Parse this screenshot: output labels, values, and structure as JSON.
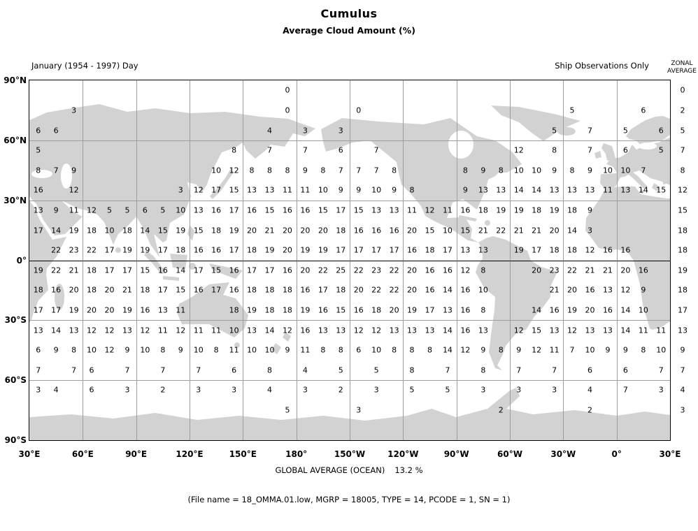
{
  "title": "Cumulus",
  "subtitle": "Average Cloud Amount (%)",
  "period_label": "January (1954 - 1997) Day",
  "source_label": "Ship Observations Only",
  "zonal_header": {
    "line1": "ZONAL",
    "line2": "AVERAGE"
  },
  "footer": {
    "global_label": "GLOBAL AVERAGE (OCEAN)",
    "global_value": "13.2 %",
    "file_info": "(File name = 18_OMMA.01.low, MGRP = 18005, TYPE = 14, PCODE = 1, SN = 1)"
  },
  "colors": {
    "land": "#d2d2d2",
    "grid": "#9d9d9d",
    "border": "#000000",
    "text": "#000000"
  },
  "chart_data": {
    "type": "heatmap",
    "title": "Cumulus",
    "subtitle": "Average Cloud Amount (%)",
    "period": "January (1954 - 1997) Day",
    "source": "Ship Observations Only",
    "units": "%",
    "global_average_ocean": 13.2,
    "grid_resolution_deg": 10,
    "lon_origin_deg_east": 30,
    "columns": 36,
    "x_tick_labels": [
      "30°E",
      "60°E",
      "90°E",
      "120°E",
      "150°E",
      "180°",
      "150°W",
      "120°W",
      "90°W",
      "60°W",
      "30°W",
      "0°",
      "30°E"
    ],
    "y_tick_labels": [
      "90°N",
      "60°N",
      "30°N",
      "0°",
      "30°S",
      "60°S",
      "90°S"
    ],
    "zonal_average_column": [
      0,
      2,
      5,
      7,
      8,
      12,
      15,
      18,
      18,
      19,
      18,
      17,
      13,
      9,
      7,
      4,
      3
    ],
    "rows": [
      {
        "band": "80N-90N",
        "zonal": 0,
        "values": {
          "14": 0
        }
      },
      {
        "band": "70N-80N",
        "zonal": 2,
        "values": {
          "2": 3,
          "14": 0,
          "18": 0,
          "30": 5,
          "34": 6
        }
      },
      {
        "band": "60N-70N",
        "zonal": 5,
        "values": {
          "0": 6,
          "1": 6,
          "13": 4,
          "15": 3,
          "17": 3,
          "29": 5,
          "31": 7,
          "33": 5,
          "35": 6
        }
      },
      {
        "band": "50N-60N",
        "zonal": 7,
        "values": {
          "0": 5,
          "11": 8,
          "13": 7,
          "15": 7,
          "17": 6,
          "19": 7,
          "27": 12,
          "29": 8,
          "31": 7,
          "33": 6,
          "35": 5
        }
      },
      {
        "band": "40N-50N",
        "zonal": 8,
        "values": {
          "0": 8,
          "1": 7,
          "2": 9,
          "10": 10,
          "11": 12,
          "12": 8,
          "13": 8,
          "14": 8,
          "15": 9,
          "16": 8,
          "17": 7,
          "18": 7,
          "19": 7,
          "20": 8,
          "24": 8,
          "25": 9,
          "26": 8,
          "27": 10,
          "28": 10,
          "29": 9,
          "30": 8,
          "31": 9,
          "32": 10,
          "33": 10,
          "34": 7
        }
      },
      {
        "band": "30N-40N",
        "zonal": 12,
        "values": {
          "0": 16,
          "2": 12,
          "8": 3,
          "9": 12,
          "10": 17,
          "11": 15,
          "12": 13,
          "13": 13,
          "14": 11,
          "15": 11,
          "16": 10,
          "17": 9,
          "18": 9,
          "19": 10,
          "20": 9,
          "21": 8,
          "24": 9,
          "25": 13,
          "26": 13,
          "27": 14,
          "28": 14,
          "29": 13,
          "30": 13,
          "31": 13,
          "32": 11,
          "33": 13,
          "34": 14,
          "35": 15
        }
      },
      {
        "band": "20N-30N",
        "zonal": 15,
        "values": {
          "0": 13,
          "1": 9,
          "2": 11,
          "3": 12,
          "4": 5,
          "5": 5,
          "6": 6,
          "7": 5,
          "8": 10,
          "9": 13,
          "10": 16,
          "11": 17,
          "12": 16,
          "13": 15,
          "14": 16,
          "15": 16,
          "16": 15,
          "17": 17,
          "18": 15,
          "19": 13,
          "20": 13,
          "21": 11,
          "22": 12,
          "23": 11,
          "24": 16,
          "25": 18,
          "26": 19,
          "27": 19,
          "28": 18,
          "29": 19,
          "30": 18,
          "31": 9
        }
      },
      {
        "band": "10N-20N",
        "zonal": 18,
        "values": {
          "0": 17,
          "1": 14,
          "2": 19,
          "3": 18,
          "4": 10,
          "5": 18,
          "6": 14,
          "7": 15,
          "8": 19,
          "9": 15,
          "10": 18,
          "11": 19,
          "12": 20,
          "13": 21,
          "14": 20,
          "15": 20,
          "16": 20,
          "17": 18,
          "18": 16,
          "19": 16,
          "20": 16,
          "21": 20,
          "22": 15,
          "23": 10,
          "24": 15,
          "25": 21,
          "26": 22,
          "27": 21,
          "28": 21,
          "29": 20,
          "30": 14,
          "31": 3
        }
      },
      {
        "band": "0-10N",
        "zonal": 18,
        "values": {
          "1": 22,
          "2": 23,
          "3": 22,
          "4": 17,
          "5": 19,
          "6": 19,
          "7": 17,
          "8": 18,
          "9": 16,
          "10": 16,
          "11": 17,
          "12": 18,
          "13": 19,
          "14": 20,
          "15": 19,
          "16": 19,
          "17": 17,
          "18": 17,
          "19": 17,
          "20": 17,
          "21": 16,
          "22": 18,
          "23": 17,
          "24": 13,
          "25": 13,
          "27": 19,
          "28": 17,
          "29": 18,
          "30": 18,
          "31": 12,
          "32": 16,
          "33": 16
        }
      },
      {
        "band": "0-10S",
        "zonal": 19,
        "values": {
          "0": 19,
          "1": 22,
          "2": 21,
          "3": 18,
          "4": 17,
          "5": 17,
          "6": 15,
          "7": 16,
          "8": 14,
          "9": 17,
          "10": 15,
          "11": 16,
          "12": 17,
          "13": 17,
          "14": 16,
          "15": 20,
          "16": 22,
          "17": 25,
          "18": 22,
          "19": 23,
          "20": 22,
          "21": 20,
          "22": 16,
          "23": 16,
          "24": 12,
          "25": 8,
          "28": 20,
          "29": 23,
          "30": 22,
          "31": 21,
          "32": 21,
          "33": 20,
          "34": 16
        }
      },
      {
        "band": "10S-20S",
        "zonal": 18,
        "values": {
          "0": 18,
          "1": 16,
          "2": 20,
          "3": 18,
          "4": 20,
          "5": 21,
          "6": 18,
          "7": 17,
          "8": 15,
          "9": 16,
          "10": 17,
          "11": 16,
          "12": 18,
          "13": 18,
          "14": 18,
          "15": 16,
          "16": 17,
          "17": 18,
          "18": 20,
          "19": 22,
          "20": 22,
          "21": 20,
          "22": 16,
          "23": 14,
          "24": 16,
          "25": 10,
          "29": 21,
          "30": 20,
          "31": 16,
          "32": 13,
          "33": 12,
          "34": 9
        }
      },
      {
        "band": "20S-30S",
        "zonal": 17,
        "values": {
          "0": 17,
          "1": 17,
          "2": 19,
          "3": 20,
          "4": 20,
          "5": 19,
          "6": 16,
          "7": 13,
          "8": 11,
          "11": 18,
          "12": 19,
          "13": 18,
          "14": 18,
          "15": 19,
          "16": 16,
          "17": 15,
          "18": 16,
          "19": 18,
          "20": 20,
          "21": 19,
          "22": 17,
          "23": 13,
          "24": 16,
          "25": 8,
          "28": 14,
          "29": 16,
          "30": 19,
          "31": 20,
          "32": 16,
          "33": 14,
          "34": 10
        }
      },
      {
        "band": "30S-40S",
        "zonal": 13,
        "values": {
          "0": 13,
          "1": 14,
          "2": 13,
          "3": 12,
          "4": 12,
          "5": 13,
          "6": 12,
          "7": 11,
          "8": 12,
          "9": 11,
          "10": 11,
          "11": 10,
          "12": 13,
          "13": 14,
          "14": 12,
          "15": 16,
          "16": 13,
          "17": 13,
          "18": 12,
          "19": 12,
          "20": 13,
          "21": 13,
          "22": 13,
          "23": 14,
          "24": 16,
          "25": 13,
          "27": 12,
          "28": 15,
          "29": 13,
          "30": 12,
          "31": 13,
          "32": 13,
          "33": 14,
          "34": 11,
          "35": 11
        }
      },
      {
        "band": "40S-50S",
        "zonal": 9,
        "values": {
          "0": 6,
          "1": 9,
          "2": 8,
          "3": 10,
          "4": 12,
          "5": 9,
          "6": 10,
          "7": 8,
          "8": 9,
          "9": 10,
          "10": 8,
          "11": 11,
          "12": 10,
          "13": 10,
          "14": 9,
          "15": 11,
          "16": 8,
          "17": 8,
          "18": 6,
          "19": 10,
          "20": 8,
          "21": 8,
          "22": 8,
          "23": 14,
          "24": 12,
          "25": 9,
          "26": 8,
          "27": 9,
          "28": 12,
          "29": 11,
          "30": 7,
          "31": 10,
          "32": 9,
          "33": 9,
          "34": 8,
          "35": 10
        }
      },
      {
        "band": "50S-60S",
        "zonal": 7,
        "values": {
          "0": 7,
          "2": 7,
          "3": 6,
          "5": 7,
          "7": 7,
          "9": 7,
          "11": 6,
          "13": 8,
          "15": 4,
          "17": 5,
          "19": 5,
          "21": 8,
          "23": 7,
          "25": 8,
          "27": 7,
          "29": 7,
          "31": 6,
          "33": 6,
          "35": 7
        }
      },
      {
        "band": "60S-70S",
        "zonal": 4,
        "values": {
          "0": 3,
          "1": 4,
          "3": 6,
          "5": 3,
          "7": 2,
          "9": 3,
          "11": 3,
          "13": 4,
          "15": 3,
          "17": 2,
          "19": 3,
          "21": 5,
          "23": 5,
          "25": 3,
          "27": 3,
          "29": 3,
          "31": 4,
          "33": 7,
          "35": 3
        }
      },
      {
        "band": "70S-80S",
        "zonal": 3,
        "values": {
          "14": 5,
          "18": 3,
          "26": 2,
          "31": 2
        }
      }
    ]
  }
}
